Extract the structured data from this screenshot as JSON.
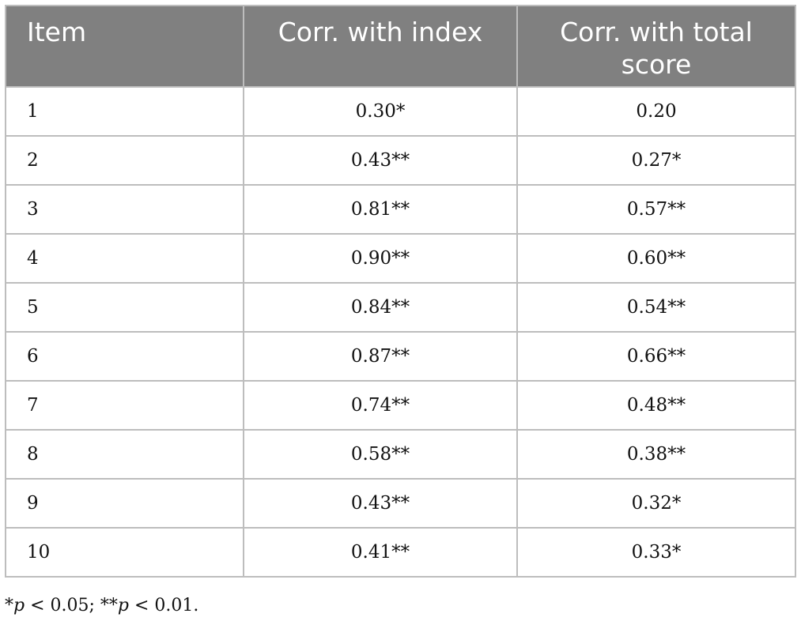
{
  "table": {
    "headers": {
      "item": "Item",
      "index": "Corr. with index",
      "total": "Corr. with total score"
    },
    "rows": [
      {
        "item": "1",
        "index": "0.30*",
        "total": "0.20"
      },
      {
        "item": "2",
        "index": "0.43**",
        "total": "0.27*"
      },
      {
        "item": "3",
        "index": "0.81**",
        "total": "0.57**"
      },
      {
        "item": "4",
        "index": "0.90**",
        "total": "0.60**"
      },
      {
        "item": "5",
        "index": "0.84**",
        "total": "0.54**"
      },
      {
        "item": "6",
        "index": "0.87**",
        "total": "0.66**"
      },
      {
        "item": "7",
        "index": "0.74**",
        "total": "0.48**"
      },
      {
        "item": "8",
        "index": "0.58**",
        "total": "0.38**"
      },
      {
        "item": "9",
        "index": "0.43**",
        "total": "0.32*"
      },
      {
        "item": "10",
        "index": "0.41**",
        "total": "0.33*"
      }
    ]
  },
  "footnote": {
    "m1": "*",
    "p1": "p",
    "t1": " < 0.05; ",
    "m2": "**",
    "p2": "p",
    "t2": " < 0.01."
  },
  "colors": {
    "header_bg": "#808080",
    "header_text": "#ffffff",
    "grid": "#bdbdbd"
  }
}
